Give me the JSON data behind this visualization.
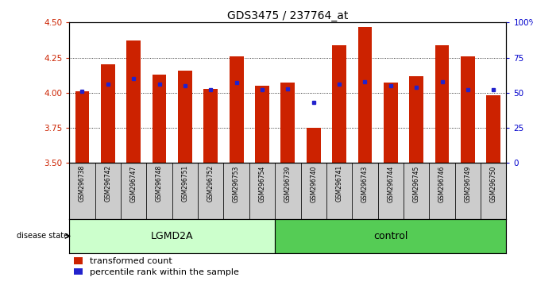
{
  "title": "GDS3475 / 237764_at",
  "samples": [
    "GSM296738",
    "GSM296742",
    "GSM296747",
    "GSM296748",
    "GSM296751",
    "GSM296752",
    "GSM296753",
    "GSM296754",
    "GSM296739",
    "GSM296740",
    "GSM296741",
    "GSM296743",
    "GSM296744",
    "GSM296745",
    "GSM296746",
    "GSM296749",
    "GSM296750"
  ],
  "bar_heights": [
    4.01,
    4.2,
    4.37,
    4.13,
    4.16,
    4.03,
    4.26,
    4.05,
    4.07,
    3.75,
    4.34,
    4.47,
    4.07,
    4.12,
    4.34,
    4.26,
    3.98
  ],
  "blue_dot_values": [
    4.01,
    4.06,
    4.1,
    4.06,
    4.05,
    4.02,
    4.07,
    4.02,
    4.03,
    3.93,
    4.06,
    4.08,
    4.05,
    4.04,
    4.08,
    4.02,
    4.02
  ],
  "group_labels": [
    "LGMD2A",
    "control"
  ],
  "group_sizes": [
    8,
    9
  ],
  "ylim": [
    3.5,
    4.5
  ],
  "yticks": [
    3.5,
    3.75,
    4.0,
    4.25,
    4.5
  ],
  "right_yticks": [
    0,
    25,
    50,
    75,
    100
  ],
  "bar_color": "#cc2200",
  "dot_color": "#2222cc",
  "lgmd_bg": "#ccffcc",
  "control_bg": "#55cc55",
  "sample_label_bg": "#cccccc",
  "bar_width": 0.55,
  "legend_items": [
    "transformed count",
    "percentile rank within the sample"
  ]
}
